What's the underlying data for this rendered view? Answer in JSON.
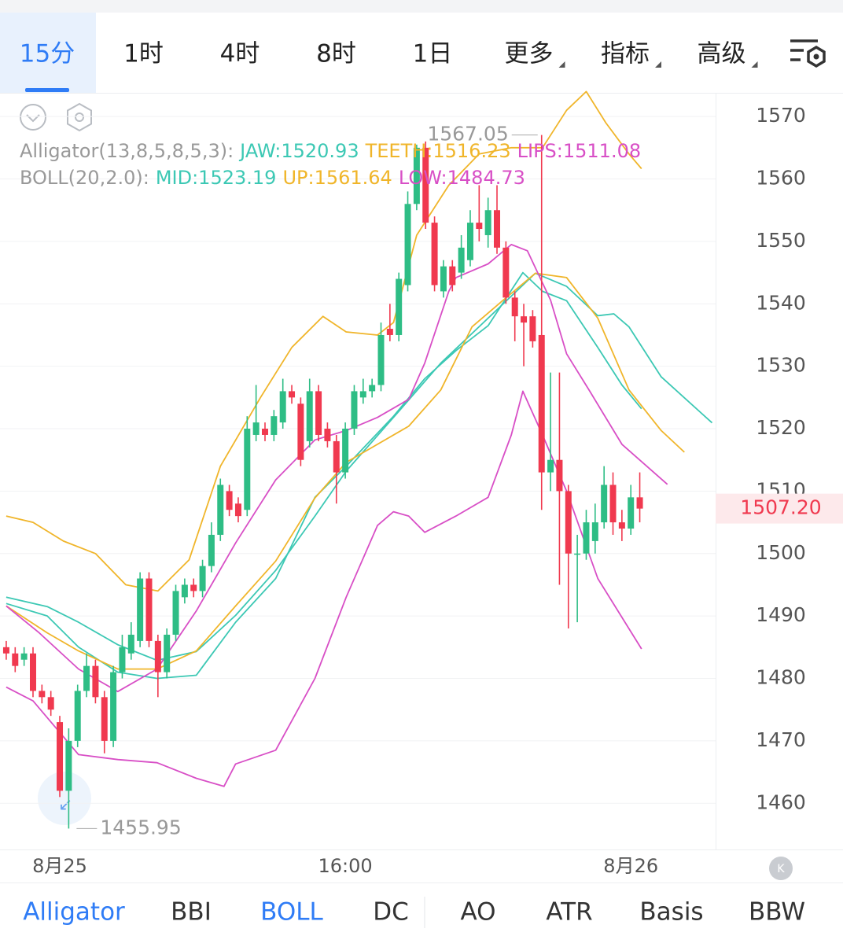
{
  "ui": {
    "tabs": [
      {
        "label": "15分",
        "dropdown": false
      },
      {
        "label": "1时",
        "dropdown": false
      },
      {
        "label": "4时",
        "dropdown": false
      },
      {
        "label": "8时",
        "dropdown": false
      },
      {
        "label": "1日",
        "dropdown": false
      },
      {
        "label": "更多",
        "dropdown": true
      },
      {
        "label": "指标",
        "dropdown": true
      },
      {
        "label": "高级",
        "dropdown": true
      }
    ],
    "active_tab": 0,
    "indicators": [
      "Alligator",
      "BBI",
      "BOLL",
      "DC",
      "AO",
      "ATR",
      "Basis",
      "BBW"
    ],
    "active_indicators": [
      0,
      2
    ]
  },
  "chart_data": {
    "type": "candlestick",
    "categories": [
      null,
      null,
      null,
      null,
      null,
      null,
      "8月25",
      null,
      null,
      null,
      null,
      null,
      null,
      null,
      null,
      null,
      null,
      null,
      null,
      null,
      null,
      null,
      null,
      null,
      null,
      null,
      null,
      null,
      null,
      null,
      null,
      null,
      null,
      null,
      null,
      null,
      null,
      null,
      "16:00",
      null,
      null,
      null,
      null,
      null,
      null,
      null,
      null,
      null,
      null,
      null,
      null,
      null,
      null,
      null,
      null,
      null,
      null,
      null,
      null,
      null,
      null,
      null,
      null,
      null,
      null,
      null,
      null,
      null,
      null,
      null,
      "8月26",
      null
    ],
    "open": [
      1485,
      1484,
      1483,
      1484,
      1478,
      1477,
      1473,
      1462,
      1470,
      1478,
      1482,
      1477,
      1470,
      1481,
      1484,
      1486,
      1496,
      1486,
      1481,
      1487,
      1493,
      1495,
      1494,
      1498,
      1503,
      1510,
      1508,
      1507,
      1519,
      1520,
      1519,
      1521,
      1526,
      1524,
      1518,
      1526,
      1520,
      1518,
      1513,
      1520,
      1525,
      1526,
      1527,
      1536,
      1535,
      1543,
      1556,
      1565,
      1553,
      1542,
      1546,
      1545,
      1547,
      1553,
      1551,
      1555,
      1549,
      1541,
      1538,
      1538,
      1535,
      1513,
      1515,
      1510,
      1500,
      1500,
      1502,
      1505,
      1511,
      1505,
      1504,
      1509
    ],
    "high": [
      1486,
      1485,
      1485,
      1485,
      1479,
      1478,
      1474,
      1472,
      1479,
      1484,
      1483,
      1478,
      1482,
      1487,
      1489,
      1497,
      1497,
      1487,
      1488,
      1495,
      1496,
      1496,
      1499,
      1505,
      1512,
      1511,
      1509,
      1522,
      1527,
      1521,
      1523,
      1528,
      1527,
      1525,
      1528,
      1527,
      1521,
      1519,
      1521,
      1527,
      1528,
      1528,
      1537,
      1540,
      1545,
      1558,
      1565.5,
      1566,
      1554,
      1547,
      1547,
      1551,
      1555,
      1559,
      1557,
      1559,
      1550,
      1542,
      1540,
      1539,
      1567.05,
      1529,
      1529,
      1511,
      1503,
      1507,
      1508,
      1514,
      1513,
      1507,
      1511,
      1513
    ],
    "low": [
      1483,
      1481,
      1482,
      1477,
      1476,
      1474,
      1461,
      1455.95,
      1469,
      1477,
      1476,
      1468,
      1469,
      1480,
      1483,
      1485,
      1485,
      1477,
      1480,
      1486,
      1492,
      1493,
      1493,
      1497,
      1502,
      1506,
      1505,
      1506,
      1518,
      1518,
      1518,
      1520,
      1524,
      1514,
      1517,
      1518,
      1517,
      1508,
      1512,
      1519,
      1524,
      1525,
      1526,
      1534,
      1534,
      1542,
      1555,
      1552,
      1542,
      1541,
      1542,
      1544,
      1546,
      1550,
      1549,
      1548,
      1540,
      1534,
      1530,
      1533,
      1507,
      1510,
      1495,
      1488,
      1489,
      1499,
      1500,
      1504,
      1503,
      1502,
      1503,
      1505
    ],
    "close": [
      1484,
      1482,
      1484,
      1478,
      1477,
      1475,
      1462,
      1470,
      1478,
      1482,
      1477,
      1470,
      1481,
      1485,
      1487,
      1496,
      1486,
      1481,
      1487,
      1494,
      1495,
      1494,
      1498,
      1503,
      1511,
      1507,
      1506,
      1520,
      1521,
      1519,
      1522,
      1526,
      1525,
      1515,
      1526,
      1519,
      1518,
      1513,
      1520,
      1526,
      1526,
      1527,
      1535,
      1535,
      1544,
      1556,
      1565,
      1553,
      1543,
      1546,
      1543,
      1549,
      1553,
      1552,
      1555,
      1549,
      1541,
      1538,
      1537,
      1534,
      1513,
      1515,
      1510,
      1500,
      1500,
      1505,
      1505,
      1511,
      1505,
      1504,
      1509,
      1507.2
    ],
    "last_price_label": "1507.20",
    "up_color": "#2ebd85",
    "down_color": "#f0394f",
    "xlim": [
      -0.7,
      79.5
    ],
    "ylim": [
      1452.6,
      1573.8
    ],
    "yticks": [
      1460,
      1470,
      1480,
      1490,
      1500,
      1510,
      1520,
      1530,
      1540,
      1550,
      1560,
      1570
    ],
    "grid": true,
    "legends": [
      {
        "label": "Alligator(13,8,5,8,5,3):",
        "series": [
          3,
          4,
          5
        ]
      },
      {
        "label": "BOLL(20,2.0):",
        "series": [
          1,
          0,
          2
        ]
      }
    ],
    "series": [
      {
        "legend": "UP:1561.64",
        "color": "#f0b52a",
        "x": [
          0,
          3,
          6.4,
          10,
          13.4,
          17,
          20.5,
          24,
          28.5,
          32,
          35.5,
          38.1,
          41.6,
          43.4,
          46,
          49.6,
          53,
          56.6,
          60.1,
          62.8,
          65,
          67.2,
          69.8,
          71.2
        ],
        "values": [
          1506,
          1505,
          1502,
          1500,
          1495,
          1494,
          1499,
          1514,
          1525,
          1533,
          1538,
          1535.5,
          1535,
          1537,
          1551,
          1559,
          1564,
          1565,
          1565,
          1571,
          1574,
          1569,
          1564,
          1561.64
        ]
      },
      {
        "legend": "MID:1523.19",
        "color": "#3cc8b4",
        "x": [
          0,
          4.6,
          8.1,
          12.5,
          16.9,
          21.3,
          25.7,
          30.2,
          34.6,
          38.1,
          43.4,
          46.9,
          50.4,
          54,
          57.9,
          60.1,
          62.8,
          66.3,
          69,
          71.2
        ],
        "values": [
          1492,
          1490,
          1485,
          1481,
          1480,
          1480.5,
          1489,
          1496,
          1509,
          1514,
          1522,
          1528,
          1532.5,
          1536.5,
          1545,
          1542,
          1540.5,
          1533,
          1527,
          1523.19
        ]
      },
      {
        "legend": "LOW:1484.73",
        "color": "#d84fc6",
        "x": [
          0,
          3,
          8.1,
          12.5,
          16.9,
          21.3,
          24.4,
          25.7,
          30.2,
          34.6,
          38.1,
          41.6,
          43.4,
          45.1,
          46.9,
          50.4,
          54,
          56.6,
          57.9,
          60.1,
          62.8,
          66.3,
          71.2
        ],
        "values": [
          1478.6,
          1476.4,
          1467.8,
          1467,
          1466.5,
          1464,
          1462.7,
          1466.3,
          1468.5,
          1480,
          1493,
          1504.5,
          1506.7,
          1506,
          1503.4,
          1506,
          1509,
          1519,
          1526,
          1519,
          1510,
          1496,
          1484.73
        ]
      },
      {
        "legend": "JAW:1520.93",
        "color": "#3cc8b4",
        "x": [
          0,
          4.6,
          8.1,
          12.5,
          16.9,
          21.3,
          25.7,
          30.2,
          34.6,
          38.1,
          43.4,
          48.7,
          54,
          59.3,
          62.8,
          66.3,
          68.1,
          69.8,
          73.4,
          79.1
        ],
        "values": [
          1493,
          1491.5,
          1489,
          1485.4,
          1482.9,
          1484.3,
          1490.1,
          1497.3,
          1506,
          1513.2,
          1521.8,
          1530.5,
          1537.7,
          1544.9,
          1542.8,
          1538.1,
          1538.4,
          1536.3,
          1528.3,
          1520.93
        ]
      },
      {
        "legend": "TEETH:1516.23",
        "color": "#f0b52a",
        "x": [
          0,
          4.6,
          8.1,
          12.5,
          16.9,
          21.3,
          25.7,
          30.2,
          34.6,
          38.1,
          41.6,
          45.1,
          48.7,
          52.2,
          55.7,
          59.3,
          62.8,
          66.3,
          69.8,
          73.4,
          76
        ],
        "values": [
          1491.6,
          1487.3,
          1484.4,
          1481.5,
          1481.5,
          1484.4,
          1491.6,
          1498.8,
          1508.9,
          1514.6,
          1517.5,
          1520.4,
          1526.2,
          1536.3,
          1540.6,
          1544.9,
          1544.2,
          1537.7,
          1526.2,
          1519.7,
          1516.23
        ]
      },
      {
        "legend": "LIPS:1511.08",
        "color": "#d84fc6",
        "x": [
          0,
          3.7,
          8.1,
          12.5,
          16.9,
          21.3,
          25.7,
          30.2,
          34.6,
          38.1,
          41.6,
          45.1,
          46.9,
          49.6,
          50.4,
          54,
          56.6,
          58.4,
          61,
          62.8,
          65.4,
          69,
          74.1
        ],
        "values": [
          1491.6,
          1487.3,
          1481.5,
          1477.9,
          1481.5,
          1490.8,
          1501.7,
          1511.8,
          1518.2,
          1519.7,
          1521.8,
          1524.7,
          1530.5,
          1542,
          1544.2,
          1546.4,
          1549.5,
          1548.5,
          1540.6,
          1532,
          1526,
          1517.5,
          1511.08
        ]
      }
    ]
  }
}
